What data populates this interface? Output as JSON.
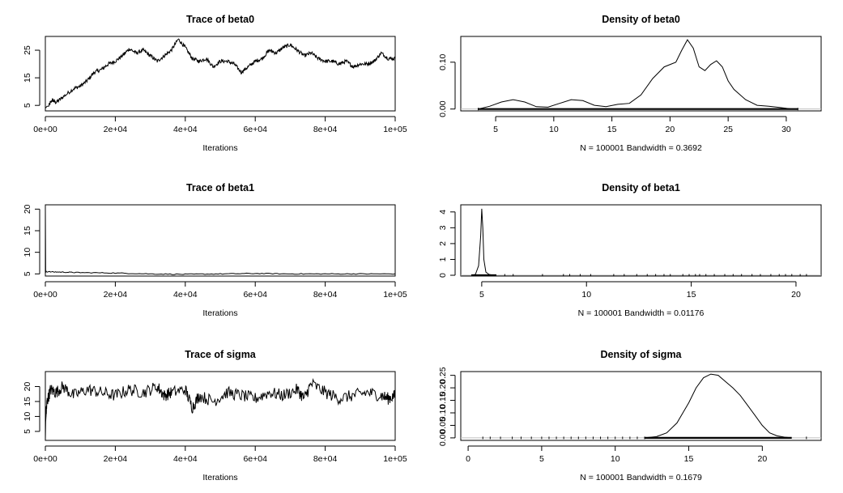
{
  "chart_data": [
    {
      "type": "line",
      "kind": "trace",
      "title": "Trace of beta0",
      "xlabel": "Iterations",
      "ylabel": "",
      "subtitle": "",
      "xlim": [
        0,
        100000
      ],
      "ylim": [
        3,
        30
      ],
      "xticks": [
        0,
        20000,
        40000,
        60000,
        80000,
        100000
      ],
      "xtick_labels": [
        "0e+00",
        "2e+04",
        "4e+04",
        "6e+04",
        "8e+04",
        "1e+05"
      ],
      "yticks": [
        5,
        15,
        25
      ],
      "ytick_labels": [
        "5",
        "15",
        "25"
      ],
      "x": [
        0,
        1000,
        2000,
        3000,
        5000,
        8000,
        10000,
        12000,
        14000,
        16000,
        18000,
        20000,
        22000,
        24000,
        26000,
        28000,
        30000,
        32000,
        34000,
        36000,
        38000,
        40000,
        42000,
        44000,
        46000,
        48000,
        50000,
        52000,
        54000,
        56000,
        58000,
        60000,
        62000,
        64000,
        66000,
        68000,
        70000,
        72000,
        74000,
        76000,
        78000,
        80000,
        82000,
        84000,
        86000,
        88000,
        90000,
        92000,
        94000,
        96000,
        98000,
        100000
      ],
      "y": [
        4,
        5,
        7,
        6,
        8,
        11,
        12,
        14,
        17,
        18,
        20,
        21,
        23,
        25.5,
        24,
        25,
        23,
        21,
        23,
        25,
        29,
        26,
        22,
        21,
        22,
        19,
        21,
        21,
        20,
        17,
        19,
        21,
        22,
        25,
        24,
        26,
        27,
        25,
        23,
        24,
        22,
        21,
        21,
        20,
        21,
        19,
        20,
        20,
        21,
        24,
        22,
        22
      ]
    },
    {
      "type": "line",
      "kind": "density",
      "title": "Density of beta0",
      "xlabel": "N = 100001   Bandwidth = 0.3692",
      "ylabel": "",
      "subtitle": "",
      "xlim": [
        2,
        33
      ],
      "ylim": [
        -0.004,
        0.155
      ],
      "xticks": [
        5,
        10,
        15,
        20,
        25,
        30
      ],
      "xtick_labels": [
        "5",
        "10",
        "15",
        "20",
        "25",
        "30"
      ],
      "yticks": [
        0.0,
        0.1
      ],
      "ytick_labels": [
        "0.00",
        "0.10"
      ],
      "x": [
        3.5,
        4.5,
        5.5,
        6.5,
        7.5,
        8.5,
        9.5,
        10.5,
        11.5,
        12.5,
        13.5,
        14.5,
        15.5,
        16.5,
        17.5,
        18.5,
        19.5,
        20.5,
        21.0,
        21.5,
        22.0,
        22.5,
        23.0,
        23.5,
        24.0,
        24.5,
        25.0,
        25.5,
        26.5,
        27.5,
        28.5,
        29.5,
        30.5,
        31.0
      ],
      "y": [
        0.0,
        0.006,
        0.015,
        0.02,
        0.015,
        0.005,
        0.004,
        0.012,
        0.02,
        0.018,
        0.008,
        0.005,
        0.01,
        0.012,
        0.03,
        0.065,
        0.09,
        0.1,
        0.125,
        0.148,
        0.13,
        0.09,
        0.082,
        0.095,
        0.103,
        0.09,
        0.06,
        0.042,
        0.02,
        0.008,
        0.006,
        0.003,
        0.0,
        0.0
      ],
      "rug": [
        3.5,
        31
      ]
    },
    {
      "type": "line",
      "kind": "trace",
      "title": "Trace of beta1",
      "xlabel": "Iterations",
      "ylabel": "",
      "subtitle": "",
      "xlim": [
        0,
        100000
      ],
      "ylim": [
        4.5,
        21
      ],
      "xticks": [
        0,
        20000,
        40000,
        60000,
        80000,
        100000
      ],
      "xtick_labels": [
        "0e+00",
        "2e+04",
        "4e+04",
        "6e+04",
        "8e+04",
        "1e+05"
      ],
      "yticks": [
        5,
        10,
        15,
        20
      ],
      "ytick_labels": [
        "5",
        "10",
        "15",
        "20"
      ],
      "x": [
        0,
        100,
        300,
        5000,
        10000,
        20000,
        30000,
        40000,
        50000,
        60000,
        70000,
        80000,
        90000,
        100000
      ],
      "y": [
        20.5,
        5.6,
        5.5,
        5.4,
        5.3,
        5.2,
        5.0,
        4.9,
        5.0,
        5.1,
        5.0,
        5.0,
        5.0,
        5.0
      ]
    },
    {
      "type": "line",
      "kind": "density",
      "title": "Density of beta1",
      "xlabel": "N = 100001   Bandwidth = 0.01176",
      "ylabel": "",
      "subtitle": "",
      "xlim": [
        4,
        21.2
      ],
      "ylim": [
        -0.05,
        4.45
      ],
      "xticks": [
        5,
        10,
        15,
        20
      ],
      "xtick_labels": [
        "5",
        "10",
        "15",
        "20"
      ],
      "yticks": [
        0,
        1,
        2,
        3,
        4
      ],
      "ytick_labels": [
        "0",
        "1",
        "2",
        "3",
        "4"
      ],
      "x": [
        4.5,
        4.7,
        4.85,
        4.95,
        5.0,
        5.05,
        5.1,
        5.2,
        5.35,
        5.5,
        5.7
      ],
      "y": [
        0.0,
        0.05,
        0.6,
        2.5,
        4.2,
        3.0,
        1.0,
        0.2,
        0.05,
        0.01,
        0.0
      ],
      "rug": [
        6.1,
        6.5,
        7.9,
        8.9,
        9.2,
        9.7,
        10.2,
        11.3,
        11.8,
        12.4,
        12.9,
        13.3,
        13.7,
        14.0,
        14.6,
        14.9,
        15.2,
        15.4,
        15.7,
        16.1,
        16.6,
        17.0,
        17.4,
        17.9,
        18.3,
        18.8,
        19.2,
        19.5,
        19.8,
        20.2,
        20.5
      ]
    },
    {
      "type": "line",
      "kind": "trace",
      "title": "Trace of sigma",
      "xlabel": "Iterations",
      "ylabel": "",
      "subtitle": "",
      "xlim": [
        0,
        100000
      ],
      "ylim": [
        2,
        25
      ],
      "xticks": [
        0,
        20000,
        40000,
        60000,
        80000,
        100000
      ],
      "xtick_labels": [
        "0e+00",
        "2e+04",
        "4e+04",
        "6e+04",
        "8e+04",
        "1e+05"
      ],
      "yticks": [
        5,
        10,
        15,
        20
      ],
      "ytick_labels": [
        "5",
        "10",
        "15",
        "20"
      ],
      "x": [
        0,
        200,
        500,
        1500,
        3000,
        5000,
        8000,
        12000,
        16000,
        20000,
        24000,
        28000,
        32000,
        34000,
        36000,
        40000,
        42000,
        44000,
        48000,
        52000,
        56000,
        60000,
        64000,
        68000,
        72000,
        74000,
        76000,
        80000,
        84000,
        88000,
        92000,
        96000,
        98000,
        100000
      ],
      "y": [
        2,
        11,
        15,
        19,
        18,
        20,
        17,
        19,
        18,
        17,
        19,
        18,
        20,
        17,
        18,
        19,
        13,
        17,
        15,
        18,
        17,
        16,
        18,
        17,
        19,
        16,
        21,
        18,
        16,
        17,
        18,
        17,
        16,
        17
      ]
    },
    {
      "type": "line",
      "kind": "density",
      "title": "Density of sigma",
      "xlabel": "N = 100001   Bandwidth = 0.1679",
      "ylabel": "",
      "subtitle": "",
      "xlim": [
        -0.5,
        24
      ],
      "ylim": [
        -0.01,
        0.265
      ],
      "xticks": [
        0,
        5,
        10,
        15,
        20
      ],
      "xtick_labels": [
        "0",
        "5",
        "10",
        "15",
        "20"
      ],
      "yticks": [
        0.0,
        0.1,
        0.2
      ],
      "ytick_labels": [
        "0.00",
        "0.10",
        "0.20"
      ],
      "minor_yticks": [
        0.05,
        0.15,
        0.25
      ],
      "minor_ytick_labels": [
        "0.05",
        "0.15",
        "0.25"
      ],
      "x": [
        12.0,
        12.8,
        13.5,
        14.2,
        15.0,
        15.5,
        16.0,
        16.5,
        17.0,
        17.5,
        18.0,
        18.5,
        19.0,
        19.5,
        20.0,
        20.5,
        21.0,
        21.5,
        22.0
      ],
      "y": [
        0.0,
        0.005,
        0.02,
        0.06,
        0.14,
        0.2,
        0.24,
        0.255,
        0.25,
        0.225,
        0.2,
        0.17,
        0.13,
        0.09,
        0.05,
        0.02,
        0.008,
        0.003,
        0.0
      ],
      "rug": [
        1.0,
        1.5,
        2.2,
        3.0,
        3.6,
        4.3,
        5.0,
        5.5,
        6.0,
        6.5,
        7.0,
        7.5,
        8.0,
        8.5,
        9.0,
        9.5,
        10.0,
        10.5,
        11.0,
        11.5,
        12.0,
        23.0
      ]
    }
  ]
}
